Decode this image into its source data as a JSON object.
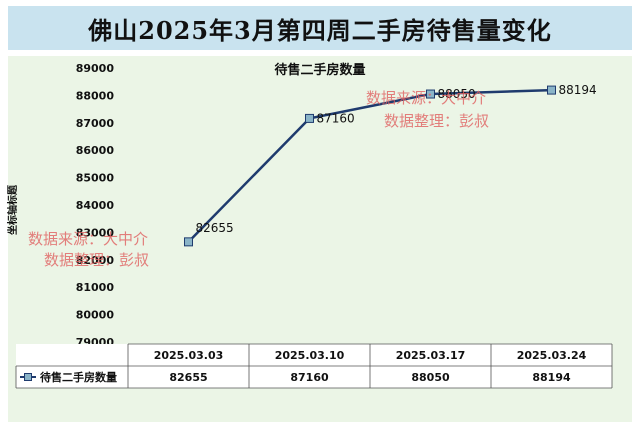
{
  "page_title": "佛山2025年3月第四周二手房待售量变化",
  "chart_data": {
    "type": "line",
    "title": "待售二手房数量",
    "ylabel": "坐标轴标题",
    "categories": [
      "2025.03.03",
      "2025.03.10",
      "2025.03.17",
      "2025.03.24"
    ],
    "series": [
      {
        "name": "待售二手房数量",
        "values": [
          82655,
          87160,
          88050,
          88194
        ]
      }
    ],
    "ylim": [
      79000,
      89000
    ],
    "yticks": [
      "89000",
      "88000",
      "87000",
      "86000",
      "85000",
      "84000",
      "83000",
      "82000",
      "81000",
      "80000",
      "79000"
    ],
    "data_labels": [
      "82655",
      "87160",
      "88050",
      "88194"
    ],
    "grid": false,
    "legend": "data-table-left",
    "line_color": "#1f3b6e",
    "marker_color": "#8ab4c8"
  },
  "watermarks": [
    {
      "line1": "数据来源：大中介",
      "line2": "数据整理：彭叔"
    },
    {
      "line1": "数据来源：大中介",
      "line2": "数据整理：彭叔"
    }
  ]
}
